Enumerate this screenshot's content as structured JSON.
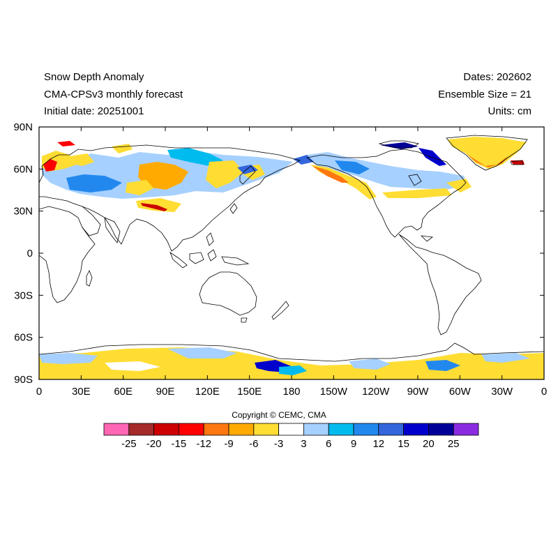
{
  "header": {
    "title": "Snow Depth Anomaly",
    "subtitle": "CMA-CPSv3 monthly forecast",
    "initial_date": "Initial date: 20251001",
    "dates": "Dates: 202602",
    "ensemble": "Ensemble Size = 21",
    "units": "Units: cm"
  },
  "copyright": "Copyright © CEMC, CMA",
  "map": {
    "projection": "equirectangular",
    "lon_range": [
      0,
      360
    ],
    "lat_range": [
      -90,
      90
    ],
    "x_ticks": [
      {
        "lon": 0,
        "label": "0"
      },
      {
        "lon": 30,
        "label": "30E"
      },
      {
        "lon": 60,
        "label": "60E"
      },
      {
        "lon": 90,
        "label": "90E"
      },
      {
        "lon": 120,
        "label": "120E"
      },
      {
        "lon": 150,
        "label": "150E"
      },
      {
        "lon": 180,
        "label": "180"
      },
      {
        "lon": 210,
        "label": "150W"
      },
      {
        "lon": 240,
        "label": "120W"
      },
      {
        "lon": 270,
        "label": "90W"
      },
      {
        "lon": 300,
        "label": "60W"
      },
      {
        "lon": 330,
        "label": "30W"
      },
      {
        "lon": 360,
        "label": "0"
      }
    ],
    "y_ticks": [
      {
        "lat": 90,
        "label": "90N"
      },
      {
        "lat": 60,
        "label": "60N"
      },
      {
        "lat": 30,
        "label": "30N"
      },
      {
        "lat": 0,
        "label": "0"
      },
      {
        "lat": -30,
        "label": "30S"
      },
      {
        "lat": -60,
        "label": "60S"
      },
      {
        "lat": -90,
        "label": "90S"
      }
    ]
  },
  "colorbar": {
    "colors": [
      "#ff66b3",
      "#a52a2a",
      "#cc0000",
      "#ff0000",
      "#ff7711",
      "#ffaa00",
      "#ffdd33",
      "#ffffff",
      "#a6d0ff",
      "#00bbee",
      "#2288ee",
      "#3366dd",
      "#0000cc",
      "#000099",
      "#8a2be2"
    ],
    "labels": [
      "-25",
      "-20",
      "-15",
      "-12",
      "-9",
      "-6",
      "-3",
      "3",
      "6",
      "9",
      "12",
      "15",
      "20",
      "25"
    ]
  }
}
